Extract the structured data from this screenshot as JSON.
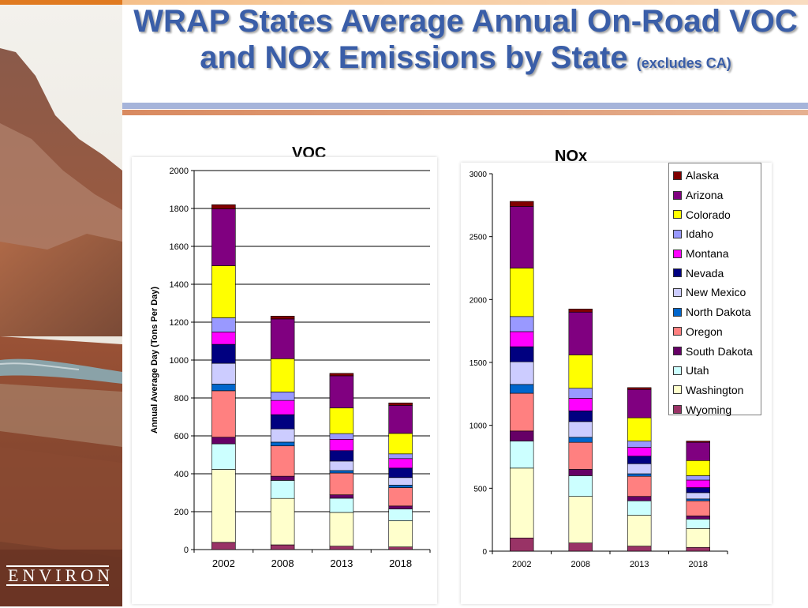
{
  "slide": {
    "title_main": "WRAP States Average Annual On-Road VOC and NOx Emissions by State",
    "title_note": "(excludes CA)",
    "logo_text": "ENVIRON"
  },
  "legend": {
    "items": [
      {
        "name": "Alaska",
        "color": "#800000"
      },
      {
        "name": "Arizona",
        "color": "#800080"
      },
      {
        "name": "Colorado",
        "color": "#ffff00"
      },
      {
        "name": "Idaho",
        "color": "#9999ff"
      },
      {
        "name": "Montana",
        "color": "#ff00ff"
      },
      {
        "name": "Nevada",
        "color": "#000080"
      },
      {
        "name": "New Mexico",
        "color": "#ccccff"
      },
      {
        "name": "North Dakota",
        "color": "#0066cc"
      },
      {
        "name": "Oregon",
        "color": "#ff8080"
      },
      {
        "name": "South Dakota",
        "color": "#660066"
      },
      {
        "name": "Utah",
        "color": "#ccffff"
      },
      {
        "name": "Washington",
        "color": "#ffffcc"
      },
      {
        "name": "Wyoming",
        "color": "#993366"
      }
    ]
  },
  "chart_data": [
    {
      "type": "bar",
      "stacked": true,
      "title": "VOC",
      "ylabel": "Annual Average Day (Tons Per Day)",
      "xlabel": "",
      "categories": [
        "2002",
        "2008",
        "2013",
        "2018"
      ],
      "ylim": [
        0,
        2000
      ],
      "yticks": [
        0,
        200,
        400,
        600,
        800,
        1000,
        1200,
        1400,
        1600,
        1800,
        2000
      ],
      "grid": true,
      "series": [
        {
          "name": "Wyoming",
          "values": [
            38,
            25,
            18,
            14
          ]
        },
        {
          "name": "Washington",
          "values": [
            385,
            245,
            178,
            138
          ]
        },
        {
          "name": "Utah",
          "values": [
            135,
            95,
            75,
            62
          ]
        },
        {
          "name": "South Dakota",
          "values": [
            35,
            22,
            18,
            16
          ]
        },
        {
          "name": "Oregon",
          "values": [
            245,
            160,
            115,
            97
          ]
        },
        {
          "name": "North Dakota",
          "values": [
            35,
            20,
            13,
            13
          ]
        },
        {
          "name": "New Mexico",
          "values": [
            110,
            70,
            50,
            40
          ]
        },
        {
          "name": "Nevada",
          "values": [
            100,
            75,
            55,
            50
          ]
        },
        {
          "name": "Montana",
          "values": [
            65,
            75,
            60,
            50
          ]
        },
        {
          "name": "Idaho",
          "values": [
            75,
            45,
            30,
            25
          ]
        },
        {
          "name": "Colorado",
          "values": [
            275,
            175,
            135,
            108
          ]
        },
        {
          "name": "Arizona",
          "values": [
            300,
            210,
            170,
            148
          ]
        },
        {
          "name": "Alaska",
          "values": [
            22,
            15,
            13,
            13
          ]
        }
      ]
    },
    {
      "type": "bar",
      "stacked": true,
      "title": "NOx",
      "ylabel": "",
      "xlabel": "",
      "categories": [
        "2002",
        "2008",
        "2013",
        "2018"
      ],
      "ylim": [
        0,
        3000
      ],
      "yticks": [
        0,
        500,
        1000,
        1500,
        2000,
        2500,
        3000
      ],
      "grid": false,
      "series": [
        {
          "name": "Wyoming",
          "values": [
            105,
            65,
            40,
            30
          ]
        },
        {
          "name": "Washington",
          "values": [
            555,
            370,
            245,
            150
          ]
        },
        {
          "name": "Utah",
          "values": [
            215,
            165,
            115,
            75
          ]
        },
        {
          "name": "South Dakota",
          "values": [
            80,
            50,
            35,
            25
          ]
        },
        {
          "name": "Oregon",
          "values": [
            300,
            215,
            160,
            120
          ]
        },
        {
          "name": "North Dakota",
          "values": [
            70,
            40,
            20,
            15
          ]
        },
        {
          "name": "New Mexico",
          "values": [
            180,
            125,
            80,
            50
          ]
        },
        {
          "name": "Nevada",
          "values": [
            120,
            85,
            60,
            40
          ]
        },
        {
          "name": "Montana",
          "values": [
            120,
            100,
            70,
            60
          ]
        },
        {
          "name": "Idaho",
          "values": [
            120,
            80,
            50,
            35
          ]
        },
        {
          "name": "Colorado",
          "values": [
            385,
            265,
            185,
            120
          ]
        },
        {
          "name": "Arizona",
          "values": [
            490,
            340,
            225,
            145
          ]
        },
        {
          "name": "Alaska",
          "values": [
            40,
            25,
            15,
            10
          ]
        }
      ]
    }
  ]
}
